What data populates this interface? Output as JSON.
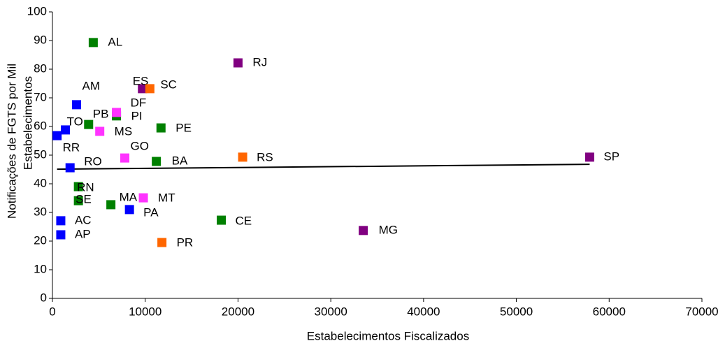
{
  "chart_data": {
    "type": "scatter",
    "xlabel": "Estabelecimentos Fiscalizados",
    "ylabel": [
      "Notificações de FGTS por Mil",
      "Estabelecimentos"
    ],
    "xlim": [
      0,
      70000
    ],
    "xticks": [
      0,
      10000,
      20000,
      30000,
      40000,
      50000,
      60000,
      70000
    ],
    "ylim": [
      0,
      100
    ],
    "yticks": [
      0,
      10,
      20,
      30,
      40,
      50,
      60,
      70,
      80,
      90,
      100
    ],
    "grid": false,
    "series": [
      {
        "color": "#0000ff",
        "labels": [
          "AM",
          "TO",
          "RR",
          "RO",
          "AC",
          "AP",
          "PA"
        ],
        "x": [
          2600,
          1400,
          500,
          1900,
          900,
          900,
          8300
        ],
        "values": [
          67.6,
          58.8,
          56.8,
          45.6,
          27.1,
          22.2,
          31
        ]
      },
      {
        "color": "#008000",
        "labels": [
          "AL",
          "PI",
          "PB",
          "PE",
          "BA",
          "RN",
          "SE",
          "MA",
          "CE"
        ],
        "x": [
          4400,
          6900,
          3900,
          11700,
          11200,
          2800,
          2800,
          6300,
          18200
        ],
        "values": [
          89.3,
          63.7,
          60.7,
          59.5,
          47.8,
          39,
          34.1,
          32.7,
          27.3
        ]
      },
      {
        "color": "#ff33ff",
        "labels": [
          "DF",
          "MS",
          "GO",
          "MT"
        ],
        "x": [
          6900,
          5100,
          7800,
          9800
        ],
        "values": [
          64.9,
          58.3,
          49,
          35.1
        ]
      },
      {
        "color": "#800080",
        "labels": [
          "RJ",
          "ES",
          "SP",
          "MG"
        ],
        "x": [
          20000,
          9700,
          57900,
          33500
        ],
        "values": [
          82.2,
          73.2,
          49.3,
          23.7
        ]
      },
      {
        "color": "#ff6600",
        "labels": [
          "SC",
          "RS",
          "PR"
        ],
        "x": [
          10500,
          20500,
          11800
        ],
        "values": [
          73.2,
          49.3,
          19.5
        ]
      }
    ],
    "trendline": {
      "color": "#000000",
      "x": [
        500,
        57900
      ],
      "values": [
        45.1,
        46.8
      ]
    }
  }
}
